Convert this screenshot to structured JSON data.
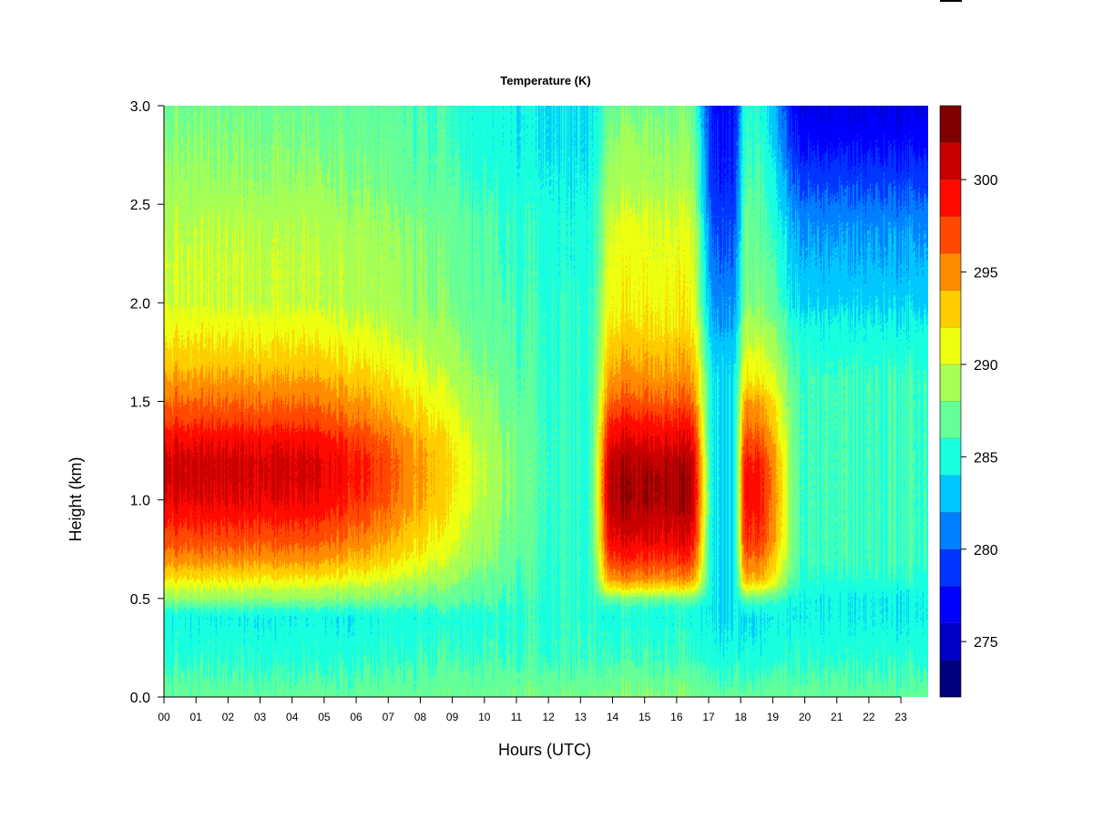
{
  "chart_data": {
    "type": "heatmap",
    "title": "Temperature (K)",
    "xlabel": "Hours (UTC)",
    "ylabel": "Height (km)",
    "x_ticks": [
      "00",
      "01",
      "02",
      "03",
      "04",
      "05",
      "06",
      "07",
      "08",
      "09",
      "10",
      "11",
      "12",
      "13",
      "14",
      "15",
      "16",
      "17",
      "18",
      "19",
      "20",
      "21",
      "22",
      "23"
    ],
    "y_ticks": [
      "0.0",
      "0.5",
      "1.0",
      "1.5",
      "2.0",
      "2.5",
      "3.0"
    ],
    "xlim": [
      0,
      23.85
    ],
    "ylim": [
      0,
      3.0
    ],
    "colorbar": {
      "range": [
        272,
        304
      ],
      "levels": [
        272,
        274,
        276,
        278,
        280,
        282,
        284,
        286,
        288,
        290,
        292,
        294,
        296,
        298,
        300,
        302,
        304
      ],
      "tick_values": [
        275,
        280,
        285,
        290,
        295,
        300
      ],
      "tick_labels": [
        "275",
        "280",
        "285",
        "290",
        "295",
        "300"
      ],
      "colors": [
        "#00007f",
        "#0000c8",
        "#0000ff",
        "#0034ff",
        "#0080ff",
        "#00c8ff",
        "#18ffe0",
        "#64ff98",
        "#a8ff54",
        "#eeff10",
        "#ffcc00",
        "#ff8c00",
        "#ff4800",
        "#ff0a00",
        "#c80000",
        "#800000"
      ]
    },
    "profiles": {
      "heights_km": [
        0.0,
        0.2,
        0.4,
        0.45,
        0.5,
        0.55,
        0.6,
        0.7,
        0.8,
        0.9,
        1.0,
        1.1,
        1.2,
        1.3,
        1.4,
        1.5,
        1.6,
        1.7,
        1.8,
        1.9,
        2.0,
        2.2,
        2.4,
        2.6,
        2.8,
        3.0
      ],
      "night": {
        "hours": [
          0,
          4,
          9,
          12.9
        ],
        "temperature_K": [
          287,
          285.5,
          284.5,
          286,
          288.5,
          290,
          292,
          295,
          297,
          298.5,
          300,
          300.5,
          300.5,
          299.5,
          297.5,
          296,
          294.5,
          293,
          292,
          291,
          290,
          290,
          289.5,
          288.5,
          288,
          287.5
        ]
      },
      "gap_13": {
        "hours": [
          13.1,
          13.25
        ],
        "temperature_K": [
          287.5,
          286,
          285.5,
          285.5,
          285.5,
          285.5,
          285.5,
          285.5,
          285.5,
          285.5,
          285.5,
          285.5,
          285.5,
          285.5,
          285.5,
          285.5,
          285.5,
          285.5,
          285.5,
          285.5,
          285.5,
          285,
          285,
          284.5,
          284,
          284
        ]
      },
      "day": {
        "hours": [
          14,
          16.4
        ],
        "temperature_K": [
          288,
          286,
          285,
          285.5,
          287.5,
          292,
          295,
          298,
          300,
          301,
          302,
          302,
          301.5,
          300,
          298.5,
          296.5,
          295,
          294,
          293,
          292,
          291.5,
          291,
          290.5,
          289,
          288.5,
          287.5
        ]
      },
      "cold_17": {
        "hours": [
          17.2,
          17.8
        ],
        "temperature_K": [
          287,
          285,
          284,
          284,
          284,
          284,
          284,
          284,
          284,
          284,
          284,
          284,
          284,
          284,
          284,
          284,
          284,
          283.5,
          283,
          282,
          281.5,
          280.5,
          279.5,
          278.5,
          278,
          277.5
        ]
      },
      "evening_18": {
        "hours": [
          18.15,
          18.45
        ],
        "temperature_K": [
          287,
          285,
          284,
          285,
          287,
          291,
          294,
          296,
          298,
          298.5,
          299,
          299,
          298.5,
          297,
          295.5,
          294.5,
          292,
          291,
          290,
          289,
          288,
          287.5,
          287,
          286.5,
          286,
          285.5
        ]
      },
      "late": {
        "hours": [
          20,
          23.85
        ],
        "temperature_K": [
          287,
          285.5,
          284.5,
          284.5,
          284.5,
          285,
          285.5,
          286,
          286,
          286,
          286,
          286,
          286,
          286,
          286,
          286,
          286,
          285.5,
          285,
          284.5,
          283.5,
          282.5,
          281.5,
          279.5,
          277.5,
          276
        ]
      }
    }
  }
}
